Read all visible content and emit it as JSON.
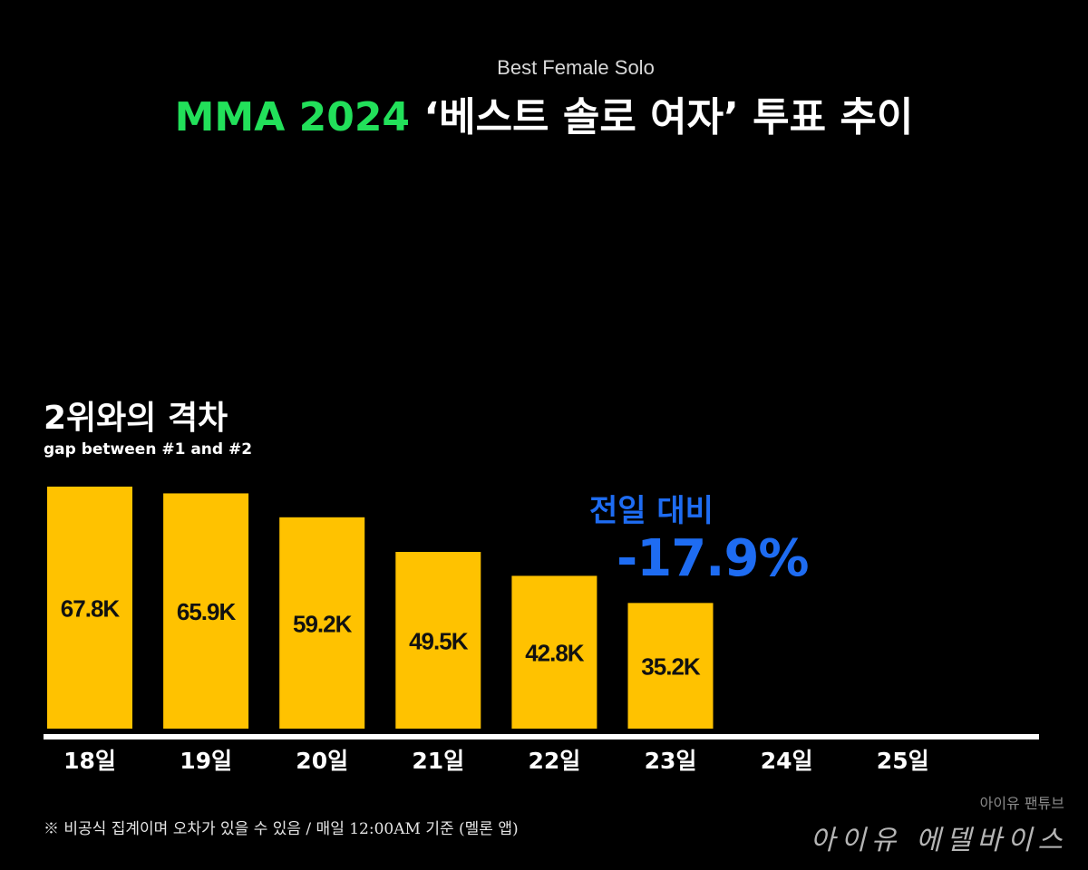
{
  "header": {
    "subtitle": "Best Female Solo",
    "title_accent": "MMA 2024",
    "title_rest": "‘베스트 솔로 여자’ 투표 추이"
  },
  "section": {
    "title": "2위와의 격차",
    "subtitle": "gap between #1 and #2"
  },
  "callout": {
    "label": "전일 대비",
    "value": "-17.9%"
  },
  "footnote": "※ 비공식 집계이며 오차가 있을 수 있음 / 매일 12:00AM 기준 (멜론 앱)",
  "brand": {
    "small": "아이유 팬튜브",
    "large": "아이유 에델바이스"
  },
  "colors": {
    "bar": "#ffc200",
    "title_accent": "#22e05a",
    "callout": "#1e6cf2",
    "baseline": "#ffffff"
  },
  "chart_data": {
    "type": "bar",
    "title": "2위와의 격차",
    "subtitle": "gap between #1 and #2",
    "categories": [
      "18일",
      "19일",
      "20일",
      "21일",
      "22일",
      "23일",
      "24일",
      "25일"
    ],
    "values": [
      67.8,
      65.9,
      59.2,
      49.5,
      42.8,
      35.2,
      null,
      null
    ],
    "value_labels": [
      "67.8K",
      "65.9K",
      "59.2K",
      "49.5K",
      "42.8K",
      "35.2K",
      "",
      ""
    ],
    "ylim": [
      0,
      70
    ],
    "grid": false,
    "legend": "none"
  }
}
